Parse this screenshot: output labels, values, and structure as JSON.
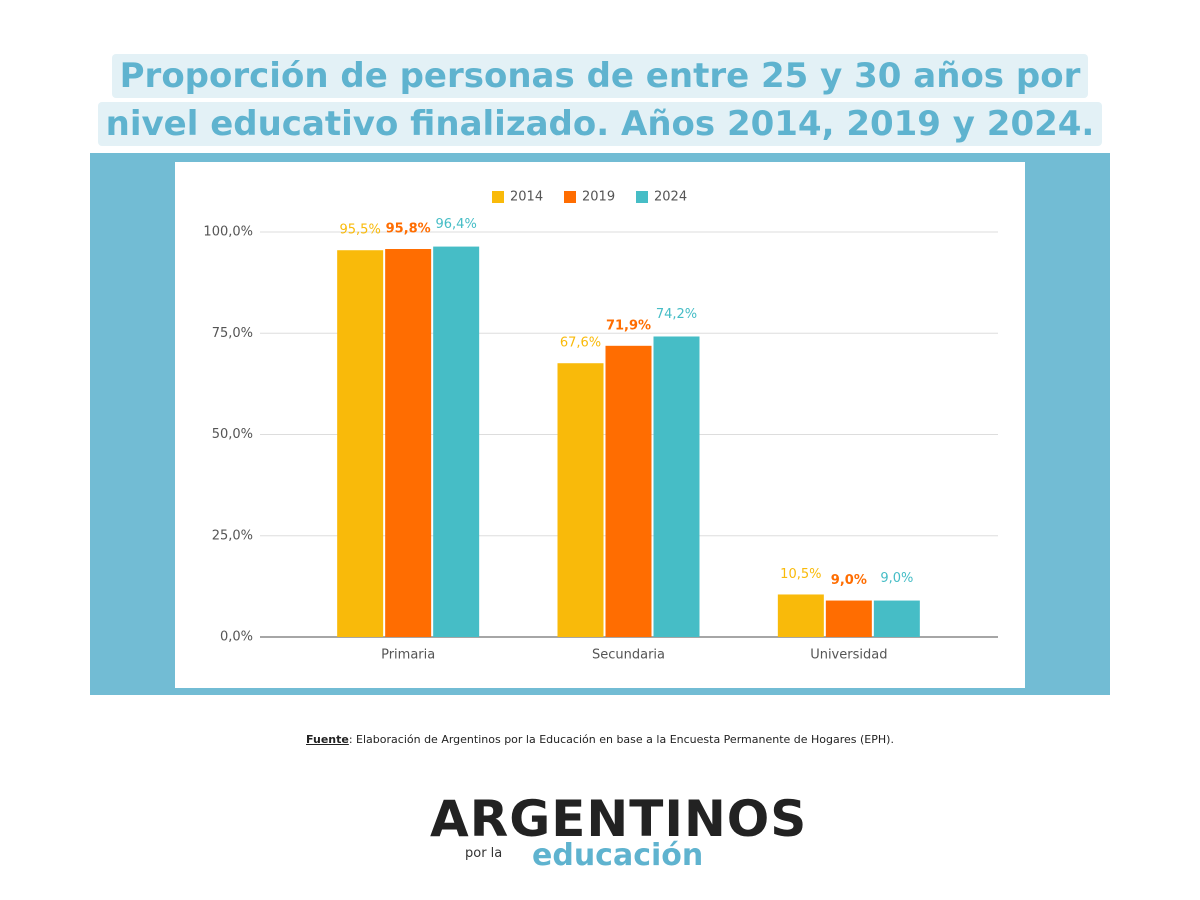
{
  "chart_data": {
    "type": "bar",
    "title": "Proporción de personas de entre 25 y 30 años por nivel educativo finalizado. Años 2014, 2019 y 2024.",
    "categories": [
      "Primaria",
      "Secundaria",
      "Universidad"
    ],
    "series": [
      {
        "name": "2014",
        "color": "#f9ba0a",
        "values": [
          95.5,
          67.6,
          10.5
        ],
        "value_labels": [
          "95,5%",
          "67,6%",
          "10,5%"
        ]
      },
      {
        "name": "2019",
        "color": "#ff6d01",
        "values": [
          95.8,
          71.9,
          9.0
        ],
        "value_labels": [
          "95,8%",
          "71,9%",
          "9,0%"
        ]
      },
      {
        "name": "2024",
        "color": "#46bdc6",
        "values": [
          96.4,
          74.2,
          9.0
        ],
        "value_labels": [
          "96,4%",
          "74,2%",
          "9,0%"
        ]
      }
    ],
    "ylim": [
      0,
      100
    ],
    "yticks": [
      {
        "value": 0,
        "label": "0,0%"
      },
      {
        "value": 25,
        "label": "25,0%"
      },
      {
        "value": 50,
        "label": "50,0%"
      },
      {
        "value": 75,
        "label": "75,0%"
      },
      {
        "value": 100,
        "label": "100,0%"
      }
    ],
    "grid": true,
    "legend": "top"
  },
  "footer": {
    "source_label": "Fuente",
    "source_text": ": Elaboración de Argentinos por la Educación en base a la Encuesta Permanente de Hogares (EPH)."
  },
  "logo": {
    "main": "ARGENTINOS",
    "small": "por la",
    "sub": "educación"
  }
}
